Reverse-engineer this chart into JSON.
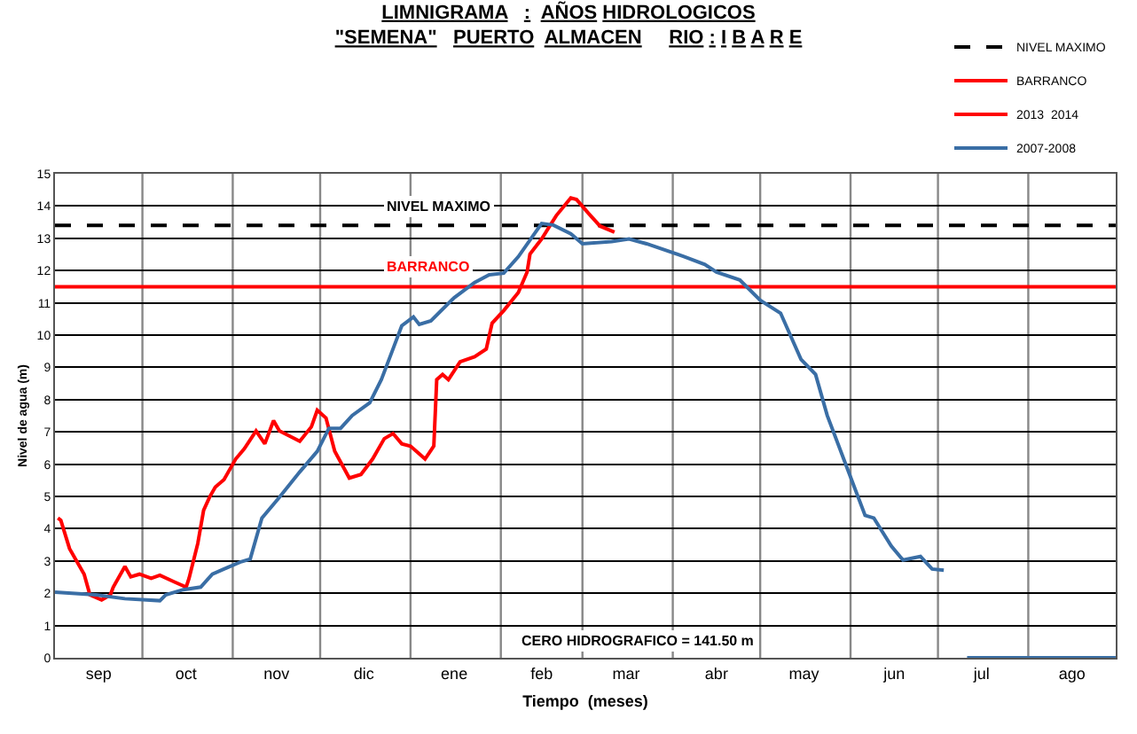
{
  "chart_data": {
    "type": "line",
    "title": "LIMNIGRAMA   :  AÑOS HIDROLOGICOS\n\"SEMENA\"   PUERTO  ALMACEN     RIO : I B A R E",
    "xlabel": "Tiempo  (meses)",
    "ylabel": "Nivel de agua (m)",
    "xlim": [
      "2013-09-01",
      "2014-08-31"
    ],
    "ylim": [
      0,
      15
    ],
    "xticks": [
      {
        "value": "2013-09-16",
        "label": "sep"
      },
      {
        "value": "2013-10-16",
        "label": "oct"
      },
      {
        "value": "2013-11-16",
        "label": "nov"
      },
      {
        "value": "2013-12-16",
        "label": "dic"
      },
      {
        "value": "2014-01-16",
        "label": "ene"
      },
      {
        "value": "2014-02-15",
        "label": "feb"
      },
      {
        "value": "2014-03-16",
        "label": "mar"
      },
      {
        "value": "2014-04-16",
        "label": "abr"
      },
      {
        "value": "2014-05-16",
        "label": "may"
      },
      {
        "value": "2014-06-16",
        "label": "jun"
      },
      {
        "value": "2014-07-16",
        "label": "jul"
      },
      {
        "value": "2014-08-16",
        "label": "ago"
      },
      {
        "value": "2013-10-01",
        "label": null
      },
      {
        "value": "2013-11-01",
        "label": null
      },
      {
        "value": "2013-12-01",
        "label": null
      },
      {
        "value": "2014-01-01",
        "label": null
      },
      {
        "value": "2014-02-01",
        "label": null
      },
      {
        "value": "2014-03-01",
        "label": null
      },
      {
        "value": "2014-04-01",
        "label": null
      },
      {
        "value": "2014-05-01",
        "label": null
      },
      {
        "value": "2014-06-01",
        "label": null
      },
      {
        "value": "2014-07-01",
        "label": null
      },
      {
        "value": "2014-08-01",
        "label": null
      }
    ],
    "yticks": [
      0,
      1,
      2,
      3,
      4,
      5,
      6,
      7,
      8,
      9,
      10,
      11,
      12,
      13,
      14,
      15
    ],
    "grid": true,
    "legend": "top right",
    "marker": "none",
    "ref_lines": [
      {
        "axis": "y",
        "value": 13.4,
        "label": "NIVEL MAXIMO",
        "color": "#000000",
        "line_style": "dashed"
      },
      {
        "axis": "y",
        "value": 11.5,
        "label": "BARRANCO",
        "color": "#ff0000",
        "line_style": "solid"
      }
    ],
    "series": [
      {
        "name": "2013  2014",
        "color": "#ff0000",
        "x": [
          "2013-09-02",
          "2013-09-03",
          "2013-09-06",
          "2013-09-11",
          "2013-09-13",
          "2013-09-17",
          "2013-09-20",
          "2013-09-21",
          "2013-09-25",
          "2013-09-27",
          "2013-09-30",
          "2013-10-04",
          "2013-10-07",
          "2013-10-12",
          "2013-10-16",
          "2013-10-17",
          "2013-10-20",
          "2013-10-22",
          "2013-10-24",
          "2013-10-26",
          "2013-10-29",
          "2013-11-02",
          "2013-11-05",
          "2013-11-09",
          "2013-11-12",
          "2013-11-15",
          "2013-11-17",
          "2013-11-24",
          "2013-11-28",
          "2013-11-30",
          "2013-12-03",
          "2013-12-06",
          "2013-12-11",
          "2013-12-15",
          "2013-12-19",
          "2013-12-23",
          "2013-12-26",
          "2013-12-29",
          "2014-01-01",
          "2014-01-06",
          "2014-01-09",
          "2014-01-10",
          "2014-01-12",
          "2014-01-14",
          "2014-01-18",
          "2014-01-23",
          "2014-01-27",
          "2014-01-29",
          "2014-02-02",
          "2014-02-07",
          "2014-02-10",
          "2014-02-11",
          "2014-02-15",
          "2014-02-20",
          "2014-02-25",
          "2014-02-27",
          "2014-03-03",
          "2014-03-07",
          "2014-03-12"
        ],
        "values": [
          4.33,
          4.26,
          3.38,
          2.59,
          1.95,
          1.79,
          1.95,
          2.19,
          2.83,
          2.51,
          2.59,
          2.46,
          2.56,
          2.35,
          2.19,
          2.46,
          3.54,
          4.57,
          4.97,
          5.29,
          5.52,
          6.16,
          6.48,
          7.03,
          6.63,
          7.35,
          7.03,
          6.71,
          7.16,
          7.67,
          7.43,
          6.4,
          5.57,
          5.68,
          6.16,
          6.79,
          6.95,
          6.63,
          6.56,
          6.16,
          6.56,
          8.62,
          8.78,
          8.62,
          9.17,
          9.33,
          9.57,
          10.37,
          10.76,
          11.32,
          11.95,
          12.51,
          12.98,
          13.7,
          14.25,
          14.2,
          13.78,
          13.38,
          13.19
        ]
      },
      {
        "name": "2007-2008",
        "color": "#3a6ea5",
        "x": [
          "2013-09-01",
          "2013-09-15",
          "2013-09-25",
          "2013-10-07",
          "2013-10-09",
          "2013-10-15",
          "2013-10-21",
          "2013-10-25",
          "2013-10-29",
          "2013-11-04",
          "2013-11-07",
          "2013-11-11",
          "2013-11-17",
          "2013-11-24",
          "2013-11-30",
          "2013-12-04",
          "2013-12-08",
          "2013-12-12",
          "2013-12-18",
          "2013-12-22",
          "2013-12-26",
          "2013-12-29",
          "2014-01-02",
          "2014-01-04",
          "2014-01-08",
          "2014-01-16",
          "2014-01-23",
          "2014-01-28",
          "2014-02-02",
          "2014-02-07",
          "2014-02-15",
          "2014-02-19",
          "2014-02-25",
          "2014-03-01",
          "2014-03-11",
          "2014-03-17",
          "2014-03-23",
          "2014-04-05",
          "2014-04-12",
          "2014-04-16",
          "2014-04-24",
          "2014-05-01",
          "2014-05-08",
          "2014-05-15",
          "2014-05-20",
          "2014-05-24",
          "2014-05-30",
          "2014-06-06",
          "2014-06-09",
          "2014-06-15",
          "2014-06-19",
          "2014-06-25",
          "2014-06-29",
          "2014-07-03",
          "2014-07-07",
          "2014-07-11",
          "2014-08-31"
        ],
        "values": [
          2.03,
          1.95,
          1.83,
          1.77,
          1.95,
          2.11,
          2.19,
          2.59,
          2.75,
          2.98,
          3.06,
          4.33,
          4.97,
          5.76,
          6.4,
          7.11,
          7.11,
          7.51,
          7.9,
          8.62,
          9.57,
          10.29,
          10.56,
          10.33,
          10.44,
          11.16,
          11.63,
          11.87,
          11.92,
          12.43,
          13.46,
          13.41,
          13.14,
          12.83,
          12.9,
          12.98,
          12.83,
          12.43,
          12.19,
          11.95,
          11.71,
          11.08,
          10.68,
          9.25,
          8.78,
          7.51,
          6.08,
          4.41,
          4.33,
          3.46,
          3.03,
          3.14,
          2.75,
          2.71,
          null,
          0,
          0
        ]
      }
    ],
    "annotations": [
      "CERO HIDROGRAFICO = 141.50 m"
    ]
  }
}
